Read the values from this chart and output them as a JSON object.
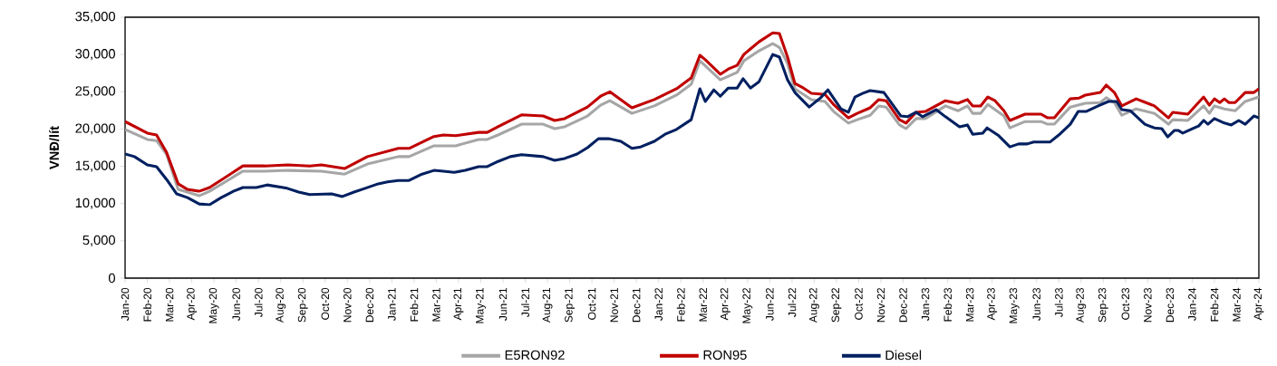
{
  "chart_data": {
    "type": "line",
    "ylabel": "VNĐ/lít",
    "legend": "bottom",
    "xlim": [
      "2020-01-01",
      "2024-04-01"
    ],
    "ylim": [
      0,
      35000
    ],
    "yticks": [
      0,
      {
        "value": 5000,
        "label": "5,000"
      },
      {
        "value": 10000,
        "label": "10,000"
      },
      {
        "value": 15000,
        "label": "15,000"
      },
      {
        "value": 20000,
        "label": "20,000"
      },
      {
        "value": 25000,
        "label": "25,000"
      },
      {
        "value": 30000,
        "label": "30,000"
      },
      {
        "value": 35000,
        "label": "35,000"
      }
    ],
    "xticks": [
      {
        "value": "2020-01",
        "label": "Jan-20"
      },
      {
        "value": "2020-02",
        "label": "Feb-20"
      },
      {
        "value": "2020-03",
        "label": "Mar-20"
      },
      {
        "value": "2020-04",
        "label": "Apr-20"
      },
      {
        "value": "2020-05",
        "label": "May-20"
      },
      {
        "value": "2020-06",
        "label": "Jun-20"
      },
      {
        "value": "2020-07",
        "label": "Jul-20"
      },
      {
        "value": "2020-08",
        "label": "Aug-20"
      },
      {
        "value": "2020-09",
        "label": "Sep-20"
      },
      {
        "value": "2020-10",
        "label": "Oct-20"
      },
      {
        "value": "2020-11",
        "label": "Nov-20"
      },
      {
        "value": "2020-12",
        "label": "Dec-20"
      },
      {
        "value": "2021-01",
        "label": "Jan-21"
      },
      {
        "value": "2021-02",
        "label": "Feb-21"
      },
      {
        "value": "2021-03",
        "label": "Mar-21"
      },
      {
        "value": "2021-04",
        "label": "Apr-21"
      },
      {
        "value": "2021-05",
        "label": "May-21"
      },
      {
        "value": "2021-06",
        "label": "Jun-21"
      },
      {
        "value": "2021-07",
        "label": "Jul-21"
      },
      {
        "value": "2021-08",
        "label": "Aug-21"
      },
      {
        "value": "2021-09",
        "label": "Sep-21"
      },
      {
        "value": "2021-10",
        "label": "Oct-21"
      },
      {
        "value": "2021-11",
        "label": "Nov-21"
      },
      {
        "value": "2021-12",
        "label": "Dec-21"
      },
      {
        "value": "2022-01",
        "label": "Jan-22"
      },
      {
        "value": "2022-02",
        "label": "Feb-22"
      },
      {
        "value": "2022-03",
        "label": "Mar-22"
      },
      {
        "value": "2022-04",
        "label": "Apr-22"
      },
      {
        "value": "2022-05",
        "label": "May-22"
      },
      {
        "value": "2022-06",
        "label": "Jun-22"
      },
      {
        "value": "2022-07",
        "label": "Jul-22"
      },
      {
        "value": "2022-08",
        "label": "Aug-22"
      },
      {
        "value": "2022-09",
        "label": "Sep-22"
      },
      {
        "value": "2022-10",
        "label": "Oct-22"
      },
      {
        "value": "2022-11",
        "label": "Nov-22"
      },
      {
        "value": "2022-12",
        "label": "Dec-22"
      },
      {
        "value": "2023-01",
        "label": "Jan-23"
      },
      {
        "value": "2023-02",
        "label": "Feb-23"
      },
      {
        "value": "2023-03",
        "label": "Mar-23"
      },
      {
        "value": "2023-04",
        "label": "Apr-23"
      },
      {
        "value": "2023-05",
        "label": "May-23"
      },
      {
        "value": "2023-06",
        "label": "Jun-23"
      },
      {
        "value": "2023-07",
        "label": "Jul-23"
      },
      {
        "value": "2023-08",
        "label": "Aug-23"
      },
      {
        "value": "2023-09",
        "label": "Sep-23"
      },
      {
        "value": "2023-10",
        "label": "Oct-23"
      },
      {
        "value": "2023-11",
        "label": "Nov-23"
      },
      {
        "value": "2023-12",
        "label": "Dec-23"
      },
      {
        "value": "2024-01",
        "label": "Jan-24"
      },
      {
        "value": "2024-02",
        "label": "Feb-24"
      },
      {
        "value": "2024-03",
        "label": "Mar-24"
      },
      {
        "value": "2024-04",
        "label": "Apr-24"
      }
    ],
    "series": [
      {
        "name": "E5RON92",
        "color": "#a6a6a6",
        "x": [
          "2020-01-01",
          "2020-02-01",
          "2020-02-13",
          "2020-02-26",
          "2020-03-13",
          "2020-04-11",
          "2020-04-25",
          "2020-06-10",
          "2020-07-10",
          "2020-08-11",
          "2020-09-26",
          "2020-10-28",
          "2020-11-28",
          "2021-01-10",
          "2021-01-25",
          "2021-02-26",
          "2021-03-28",
          "2021-04-28",
          "2021-05-10",
          "2021-05-25",
          "2021-06-26",
          "2021-07-26",
          "2021-08-11",
          "2021-08-25",
          "2021-09-25",
          "2021-10-13",
          "2021-10-26",
          "2021-11-25",
          "2021-12-26",
          "2022-01-26",
          "2022-02-14",
          "2022-02-25",
          "2022-03-25",
          "2022-04-17",
          "2022-04-26",
          "2022-05-17",
          "2022-06-05",
          "2022-06-14",
          "2022-06-25",
          "2022-07-05",
          "2022-07-28",
          "2022-08-16",
          "2022-08-28",
          "2022-09-17",
          "2022-09-29",
          "2022-10-17",
          "2022-10-29",
          "2022-11-08",
          "2022-11-26",
          "2022-12-05",
          "2022-12-19",
          "2023-01-01",
          "2023-01-29",
          "2023-02-14",
          "2023-02-26",
          "2023-03-05",
          "2023-03-16",
          "2023-03-26",
          "2023-04-17",
          "2023-04-25",
          "2023-05-16",
          "2023-06-07",
          "2023-06-16",
          "2023-06-25",
          "2023-07-17",
          "2023-08-07",
          "2023-08-28",
          "2023-09-05",
          "2023-09-16",
          "2023-09-26",
          "2023-10-16",
          "2023-11-10",
          "2023-11-29",
          "2023-12-05",
          "2023-12-26",
          "2024-01-17",
          "2024-01-25",
          "2024-02-01",
          "2024-02-14",
          "2024-02-28",
          "2024-03-13",
          "2024-04-01"
        ],
        "values": [
          19950,
          18600,
          18450,
          16650,
          11900,
          11050,
          11650,
          14350,
          14350,
          14450,
          14350,
          13950,
          15300,
          16300,
          16300,
          17750,
          17750,
          18600,
          18600,
          19200,
          20650,
          20650,
          20050,
          20300,
          21750,
          23200,
          23800,
          22100,
          23100,
          24550,
          26000,
          29150,
          26600,
          27600,
          29150,
          30500,
          31450,
          30950,
          28800,
          25400,
          23950,
          23700,
          22350,
          20800,
          21250,
          21850,
          23100,
          22950,
          20550,
          20050,
          21400,
          21400,
          23100,
          22450,
          23100,
          22100,
          22100,
          23300,
          21750,
          20150,
          21000,
          21000,
          20650,
          20650,
          22950,
          23450,
          23550,
          24200,
          23550,
          21850,
          22700,
          22100,
          20650,
          21250,
          21150,
          23100,
          22100,
          23100,
          22700,
          22450,
          23700,
          24300
        ]
      },
      {
        "name": "RON95",
        "color": "#c00000",
        "x": [
          "2020-01-01",
          "2020-02-01",
          "2020-02-13",
          "2020-02-26",
          "2020-03-13",
          "2020-03-26",
          "2020-04-11",
          "2020-04-25",
          "2020-06-10",
          "2020-07-10",
          "2020-08-11",
          "2020-09-10",
          "2020-09-26",
          "2020-10-28",
          "2020-11-28",
          "2021-01-10",
          "2021-01-25",
          "2021-02-26",
          "2021-03-11",
          "2021-03-28",
          "2021-04-28",
          "2021-05-10",
          "2021-05-25",
          "2021-06-26",
          "2021-07-26",
          "2021-08-11",
          "2021-08-25",
          "2021-09-25",
          "2021-10-13",
          "2021-10-26",
          "2021-11-25",
          "2021-12-26",
          "2022-01-26",
          "2022-02-14",
          "2022-02-25",
          "2022-03-04",
          "2022-03-25",
          "2022-04-05",
          "2022-04-17",
          "2022-04-26",
          "2022-05-05",
          "2022-05-17",
          "2022-06-05",
          "2022-06-14",
          "2022-06-25",
          "2022-07-05",
          "2022-07-17",
          "2022-07-28",
          "2022-08-16",
          "2022-08-28",
          "2022-09-17",
          "2022-09-29",
          "2022-10-17",
          "2022-10-29",
          "2022-11-08",
          "2022-11-26",
          "2022-12-05",
          "2022-12-19",
          "2023-01-01",
          "2023-01-29",
          "2023-02-14",
          "2023-02-26",
          "2023-03-05",
          "2023-03-16",
          "2023-03-26",
          "2023-04-05",
          "2023-04-17",
          "2023-04-25",
          "2023-05-16",
          "2023-06-07",
          "2023-06-16",
          "2023-06-25",
          "2023-07-17",
          "2023-07-29",
          "2023-08-07",
          "2023-08-28",
          "2023-09-05",
          "2023-09-16",
          "2023-09-26",
          "2023-10-16",
          "2023-11-10",
          "2023-11-29",
          "2023-12-05",
          "2023-12-26",
          "2024-01-17",
          "2024-01-25",
          "2024-02-01",
          "2024-02-08",
          "2024-02-14",
          "2024-02-20",
          "2024-02-28",
          "2024-03-13",
          "2024-03-25",
          "2024-04-01"
        ],
        "values": [
          21000,
          19450,
          19200,
          16900,
          12650,
          11900,
          11650,
          12150,
          15050,
          15050,
          15200,
          15050,
          15200,
          14700,
          16300,
          17400,
          17400,
          19000,
          19200,
          19100,
          19550,
          19550,
          20300,
          21900,
          21750,
          21150,
          21400,
          22950,
          24400,
          25000,
          22850,
          23950,
          25400,
          26850,
          29900,
          29300,
          27350,
          28050,
          28550,
          30000,
          30750,
          31700,
          32900,
          32800,
          29650,
          26100,
          25500,
          24800,
          24650,
          23300,
          21500,
          22100,
          22850,
          23950,
          23800,
          21250,
          20800,
          22250,
          22350,
          23800,
          23450,
          23950,
          23100,
          23100,
          24300,
          23800,
          22450,
          21150,
          22000,
          22000,
          21500,
          21500,
          24050,
          24150,
          24550,
          24900,
          25900,
          24900,
          23100,
          24050,
          23100,
          21500,
          22250,
          22000,
          24300,
          23200,
          24050,
          23550,
          24050,
          23550,
          23550,
          24900,
          24900,
          25400
        ]
      },
      {
        "name": "Diesel",
        "color": "#002060",
        "x": [
          "2020-01-01",
          "2020-01-14",
          "2020-02-01",
          "2020-02-13",
          "2020-02-26",
          "2020-03-11",
          "2020-03-26",
          "2020-04-11",
          "2020-04-25",
          "2020-05-11",
          "2020-05-28",
          "2020-06-10",
          "2020-06-28",
          "2020-07-13",
          "2020-08-10",
          "2020-08-26",
          "2020-09-10",
          "2020-10-10",
          "2020-10-25",
          "2020-11-10",
          "2020-11-25",
          "2020-12-13",
          "2020-12-26",
          "2021-01-10",
          "2021-01-25",
          "2021-02-11",
          "2021-02-26",
          "2021-03-11",
          "2021-03-26",
          "2021-04-10",
          "2021-04-28",
          "2021-05-10",
          "2021-05-25",
          "2021-06-11",
          "2021-06-26",
          "2021-07-26",
          "2021-08-11",
          "2021-08-25",
          "2021-09-11",
          "2021-09-25",
          "2021-10-10",
          "2021-10-25",
          "2021-11-10",
          "2021-11-25",
          "2021-12-07",
          "2021-12-26",
          "2022-01-10",
          "2022-01-26",
          "2022-02-14",
          "2022-02-25",
          "2022-03-04",
          "2022-03-16",
          "2022-03-25",
          "2022-04-05",
          "2022-04-17",
          "2022-04-25",
          "2022-05-05",
          "2022-05-17",
          "2022-05-28",
          "2022-06-05",
          "2022-06-14",
          "2022-06-25",
          "2022-07-05",
          "2022-07-25",
          "2022-08-10",
          "2022-08-20",
          "2022-09-07",
          "2022-09-17",
          "2022-09-26",
          "2022-10-07",
          "2022-10-17",
          "2022-11-05",
          "2022-11-28",
          "2022-12-07",
          "2022-12-19",
          "2022-12-28",
          "2023-01-16",
          "2023-01-29",
          "2023-02-16",
          "2023-02-26",
          "2023-03-05",
          "2023-03-19",
          "2023-03-25",
          "2023-04-10",
          "2023-04-25",
          "2023-05-07",
          "2023-05-19",
          "2023-05-28",
          "2023-06-19",
          "2023-07-01",
          "2023-07-17",
          "2023-07-28",
          "2023-08-08",
          "2023-08-25",
          "2023-09-08",
          "2023-09-19",
          "2023-09-26",
          "2023-10-08",
          "2023-10-28",
          "2023-11-10",
          "2023-11-20",
          "2023-11-28",
          "2023-12-07",
          "2023-12-13",
          "2023-12-19",
          "2024-01-04",
          "2024-01-10",
          "2024-01-17",
          "2024-01-23",
          "2024-02-01",
          "2024-02-14",
          "2024-02-23",
          "2024-03-04",
          "2024-03-13",
          "2024-03-25",
          "2024-04-01"
        ],
        "values": [
          16650,
          16300,
          15200,
          14950,
          13250,
          11300,
          10800,
          9950,
          9850,
          10800,
          11650,
          12150,
          12150,
          12500,
          12050,
          11550,
          11200,
          11300,
          10950,
          11550,
          12050,
          12650,
          12900,
          13100,
          13100,
          13950,
          14450,
          14350,
          14200,
          14450,
          14950,
          14950,
          15650,
          16300,
          16550,
          16300,
          15800,
          16050,
          16650,
          17500,
          18700,
          18700,
          18350,
          17400,
          17600,
          18350,
          19300,
          19950,
          21250,
          25400,
          23700,
          25250,
          24400,
          25500,
          25500,
          26750,
          25500,
          26350,
          28450,
          30000,
          29650,
          26600,
          24900,
          22950,
          24200,
          25250,
          22700,
          22250,
          24300,
          24800,
          25150,
          24900,
          21750,
          21650,
          22250,
          21650,
          22600,
          21650,
          20300,
          20550,
          19300,
          19450,
          20150,
          19100,
          17600,
          18000,
          18000,
          18250,
          18250,
          19200,
          20650,
          22350,
          22350,
          23100,
          23700,
          23700,
          22600,
          22450,
          20650,
          20150,
          20050,
          18950,
          19800,
          19800,
          19450,
          20150,
          20400,
          21150,
          20650,
          21400,
          20800,
          20550,
          21150,
          20650,
          21750,
          21500
        ]
      }
    ]
  }
}
